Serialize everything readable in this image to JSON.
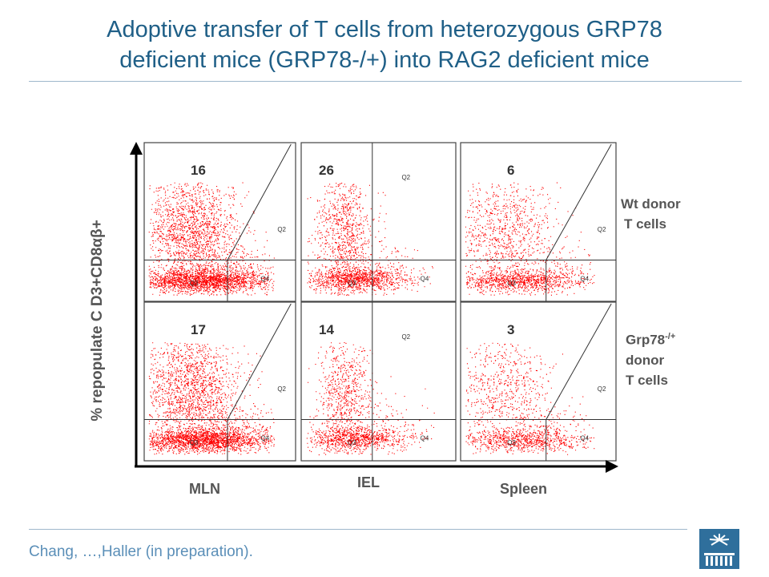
{
  "slide": {
    "title_line1": "Adoptive transfer of T cells from heterozygous GRP78",
    "title_line2": "deficient mice (GRP78-/+) into RAG2 deficient mice",
    "footer": "Chang, …,Haller (in preparation).",
    "colors": {
      "title": "#1f5f87",
      "dots": "#ff0000",
      "footer": "#5b8fb8",
      "rule": "#9fb8cc"
    }
  },
  "figure": {
    "ylabel": "% repopulate C D3+CD8αβ+",
    "columns": [
      "MLN",
      "IEL",
      "Spleen"
    ],
    "rows": [
      {
        "label_lines": [
          "Wt donor",
          "T cells"
        ]
      },
      {
        "label_lines": [
          "Grp78",
          "donor",
          "T cells"
        ],
        "label_superscript": "-/+"
      }
    ],
    "panels": [
      {
        "col": "MLN",
        "row": 0,
        "percent": "16",
        "q2": "Q2",
        "q3": "Q3",
        "q4": "Q4",
        "gate": "diagonal",
        "density": 0.95
      },
      {
        "col": "IEL",
        "row": 0,
        "percent": "26",
        "q2": "Q2",
        "q3": "Q3",
        "q4": "Q4",
        "gate": "vertical",
        "density": 0.65
      },
      {
        "col": "Spleen",
        "row": 0,
        "percent": "6",
        "q2": "Q2",
        "q3": "Q3",
        "q4": "Q4",
        "gate": "diagonal",
        "density": 0.5
      },
      {
        "col": "MLN",
        "row": 1,
        "percent": "17",
        "q2": "Q2",
        "q3": "Q3",
        "q4": "Q4",
        "gate": "diagonal",
        "density": 0.95
      },
      {
        "col": "IEL",
        "row": 1,
        "percent": "14",
        "q2": "Q2",
        "q3": "Q3",
        "q4": "Q4",
        "gate": "vertical",
        "density": 0.55
      },
      {
        "col": "Spleen",
        "row": 1,
        "percent": "3",
        "q2": "Q2",
        "q3": "Q3",
        "q4": "Q4",
        "gate": "diagonal",
        "density": 0.4
      }
    ]
  }
}
